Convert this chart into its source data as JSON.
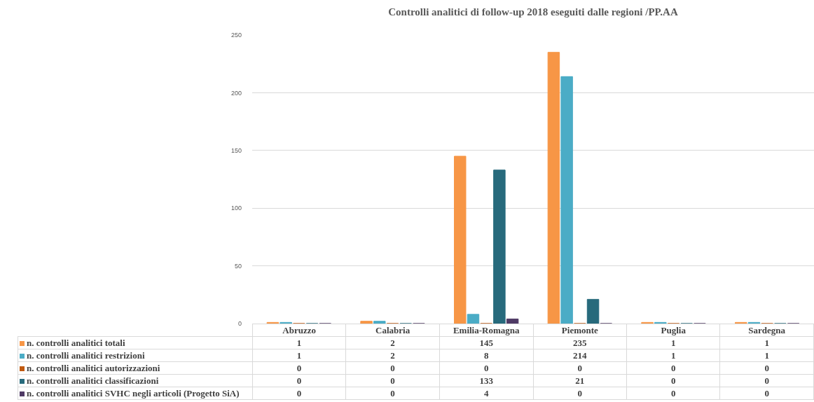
{
  "chart_data": {
    "type": "bar",
    "title": "Controlli analitici di follow-up 2018 eseguiti dalle regioni /PP.AA",
    "categories": [
      "Abruzzo",
      "Calabria",
      "Emilia-Romagna",
      "Piemonte",
      "Puglia",
      "Sardegna"
    ],
    "series": [
      {
        "name": "n. controlli analitici totali",
        "color": "#f79646",
        "values": [
          1,
          2,
          145,
          235,
          1,
          1
        ]
      },
      {
        "name": "n. controlli analitici restrizioni",
        "color": "#4bacc6",
        "values": [
          1,
          2,
          8,
          214,
          1,
          1
        ]
      },
      {
        "name": "n. controlli analitici autorizzazioni",
        "color": "#c0590f",
        "values": [
          0,
          0,
          0,
          0,
          0,
          0
        ]
      },
      {
        "name": "n. controlli analitici classificazioni",
        "color": "#276a7c",
        "values": [
          0,
          0,
          133,
          21,
          0,
          0
        ]
      },
      {
        "name": "n. controlli analitici SVHC negli articoli (Progetto SiA)",
        "color": "#4f3a65",
        "values": [
          0,
          0,
          4,
          0,
          0,
          0
        ]
      }
    ],
    "ylim": [
      0,
      250
    ],
    "yticks": [
      0,
      50,
      100,
      150,
      200,
      250
    ],
    "grid": "y",
    "legend": "bottom",
    "data_labels": true
  }
}
